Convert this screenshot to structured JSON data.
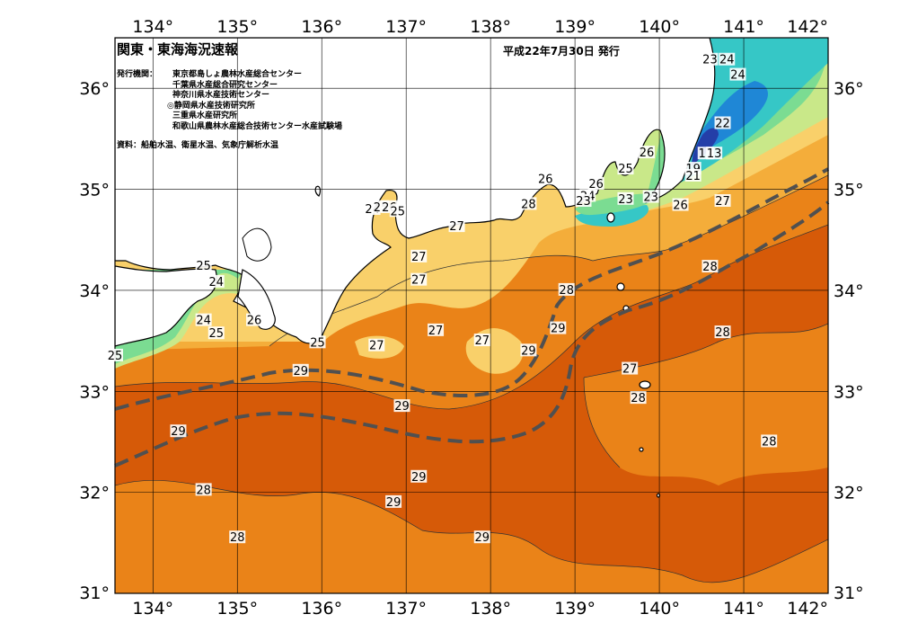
{
  "map": {
    "title": "関東・東海海況速報",
    "date": "平成22年7月30日 発行",
    "issuers_label": "発行機関：",
    "issuers": [
      "東京都島しょ農林水産総合センター",
      "千葉県水産総合研究センター",
      "神奈川県水産技術センター",
      "◎静岡県水産技術研究所",
      "三重県水産研究所",
      "和歌山県農林水産総合技術センター水産試験場"
    ],
    "sources": "資料：船舶水温、衛星水温、気象庁解析水温",
    "lon_ticks": [
      "134°",
      "135°",
      "136°",
      "137°",
      "138°",
      "139°",
      "140°",
      "141°",
      "142°"
    ],
    "lat_ticks": [
      "36°",
      "35°",
      "34°",
      "33°",
      "32°",
      "31°"
    ],
    "colors": {
      "sst_29": "#d65a08",
      "sst_28": "#ea8318",
      "sst_27": "#f4ad3a",
      "sst_26": "#f9d06a",
      "sst_25": "#c9e889",
      "sst_24": "#7bdc92",
      "sst_23": "#36c7c6",
      "sst_22": "#1f87d6",
      "sst_20": "#243ea8",
      "land": "#ffffff",
      "kuroshio_axis": "#505050"
    },
    "temperature_labels": [
      {
        "text": "29",
        "lon": 134.3,
        "lat": 32.6
      },
      {
        "text": "28",
        "lon": 134.6,
        "lat": 32.02
      },
      {
        "text": "28",
        "lon": 135.0,
        "lat": 31.55
      },
      {
        "text": "29",
        "lon": 137.9,
        "lat": 31.55
      },
      {
        "text": "29",
        "lon": 137.15,
        "lat": 32.15
      },
      {
        "text": "29",
        "lon": 136.85,
        "lat": 31.9
      },
      {
        "text": "29",
        "lon": 136.95,
        "lat": 32.85
      },
      {
        "text": "29",
        "lon": 135.75,
        "lat": 33.2
      },
      {
        "text": "27",
        "lon": 136.65,
        "lat": 33.45
      },
      {
        "text": "27",
        "lon": 137.35,
        "lat": 33.6
      },
      {
        "text": "27",
        "lon": 137.9,
        "lat": 33.5
      },
      {
        "text": "27",
        "lon": 137.15,
        "lat": 34.1
      },
      {
        "text": "27",
        "lon": 137.15,
        "lat": 34.33
      },
      {
        "text": "27",
        "lon": 137.6,
        "lat": 34.63
      },
      {
        "text": "29",
        "lon": 138.45,
        "lat": 33.4
      },
      {
        "text": "29",
        "lon": 138.8,
        "lat": 33.62
      },
      {
        "text": "28",
        "lon": 138.9,
        "lat": 34.0
      },
      {
        "text": "28",
        "lon": 138.45,
        "lat": 34.85
      },
      {
        "text": "26",
        "lon": 138.65,
        "lat": 35.1
      },
      {
        "text": "28",
        "lon": 139.75,
        "lat": 32.93
      },
      {
        "text": "27",
        "lon": 139.65,
        "lat": 33.22
      },
      {
        "text": "28",
        "lon": 140.75,
        "lat": 33.58
      },
      {
        "text": "28",
        "lon": 141.3,
        "lat": 32.5
      },
      {
        "text": "28",
        "lon": 140.6,
        "lat": 34.23
      },
      {
        "text": "27",
        "lon": 140.75,
        "lat": 34.88
      },
      {
        "text": "26",
        "lon": 140.25,
        "lat": 34.84
      },
      {
        "text": "23",
        "lon": 139.6,
        "lat": 34.9
      },
      {
        "text": "23",
        "lon": 139.9,
        "lat": 34.92
      },
      {
        "text": "24",
        "lon": 139.15,
        "lat": 34.93
      },
      {
        "text": "23",
        "lon": 139.1,
        "lat": 34.88
      },
      {
        "text": "26",
        "lon": 139.25,
        "lat": 35.05
      },
      {
        "text": "25",
        "lon": 139.6,
        "lat": 35.2
      },
      {
        "text": "26",
        "lon": 139.85,
        "lat": 35.36
      },
      {
        "text": "22",
        "lon": 140.75,
        "lat": 35.65
      },
      {
        "text": "17",
        "lon": 140.55,
        "lat": 35.35
      },
      {
        "text": "13",
        "lon": 140.65,
        "lat": 35.35
      },
      {
        "text": "19",
        "lon": 140.4,
        "lat": 35.2
      },
      {
        "text": "21",
        "lon": 140.4,
        "lat": 35.13
      },
      {
        "text": "24",
        "lon": 140.93,
        "lat": 36.13
      },
      {
        "text": "23",
        "lon": 140.6,
        "lat": 36.28
      },
      {
        "text": "24",
        "lon": 140.8,
        "lat": 36.28
      },
      {
        "text": "24",
        "lon": 134.75,
        "lat": 34.08
      },
      {
        "text": "25",
        "lon": 134.6,
        "lat": 34.24
      },
      {
        "text": "24",
        "lon": 134.6,
        "lat": 33.7
      },
      {
        "text": "25",
        "lon": 134.75,
        "lat": 33.57
      },
      {
        "text": "26",
        "lon": 135.2,
        "lat": 33.7
      },
      {
        "text": "25",
        "lon": 135.95,
        "lat": 33.48
      },
      {
        "text": "25",
        "lon": 133.55,
        "lat": 33.35
      },
      {
        "text": "24",
        "lon": 136.6,
        "lat": 34.8
      },
      {
        "text": "25",
        "lon": 136.7,
        "lat": 34.82
      },
      {
        "text": "26",
        "lon": 136.8,
        "lat": 34.82
      },
      {
        "text": "25",
        "lon": 136.9,
        "lat": 34.78
      }
    ]
  }
}
